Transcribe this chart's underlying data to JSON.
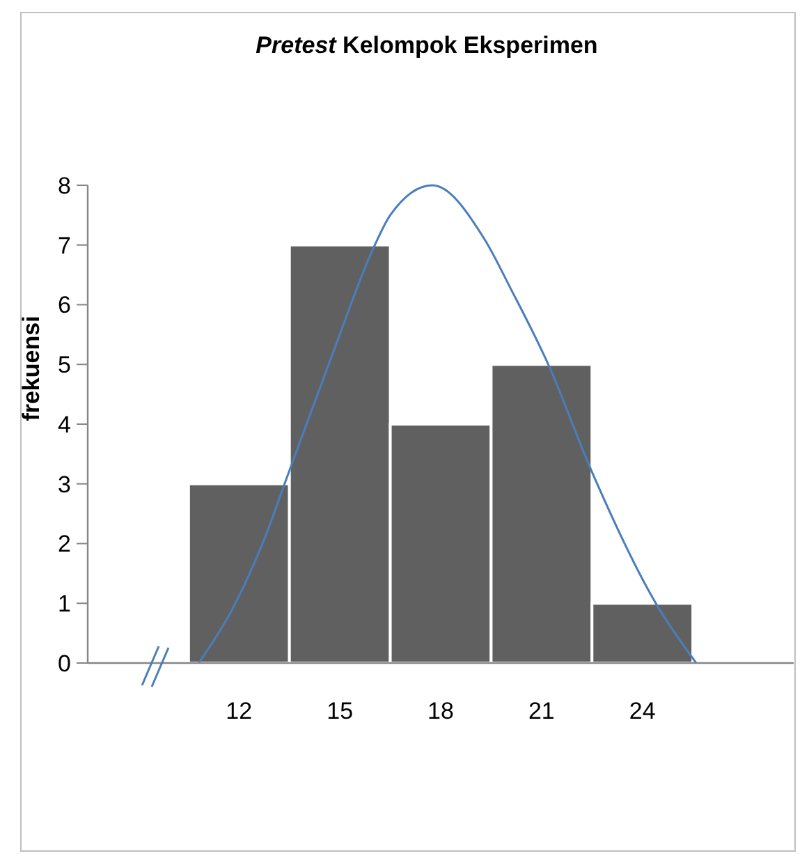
{
  "chart_data": {
    "type": "histogram",
    "title": "Pretest Kelompok Eksperimen",
    "ylabel": "frekuensi",
    "bins": [
      10.5,
      13.5,
      16.5,
      19.5,
      22.5,
      25.5
    ],
    "values": [
      3,
      7,
      4,
      5,
      1
    ],
    "color": "#606060",
    "xlim": [
      7.5,
      28.5
    ],
    "xticks": [
      12,
      15,
      18,
      21,
      24
    ],
    "ylim": [
      0,
      8
    ],
    "yticks": [
      0,
      1,
      2,
      3,
      4,
      5,
      6,
      7,
      8
    ],
    "series": [
      {
        "type": "line",
        "color": "#4a7ebb",
        "x": [
          10.8,
          11.8,
          12.7,
          13.46,
          14.8,
          16.0,
          16.5,
          17.75,
          19.3,
          20.1,
          21.2,
          22.5,
          24.4,
          25.6
        ],
        "values": [
          0,
          0.9,
          2.0,
          3.16,
          5.2,
          6.95,
          7.5,
          8,
          7.1,
          6.25,
          5.0,
          3.2,
          1.0,
          0
        ]
      }
    ]
  }
}
